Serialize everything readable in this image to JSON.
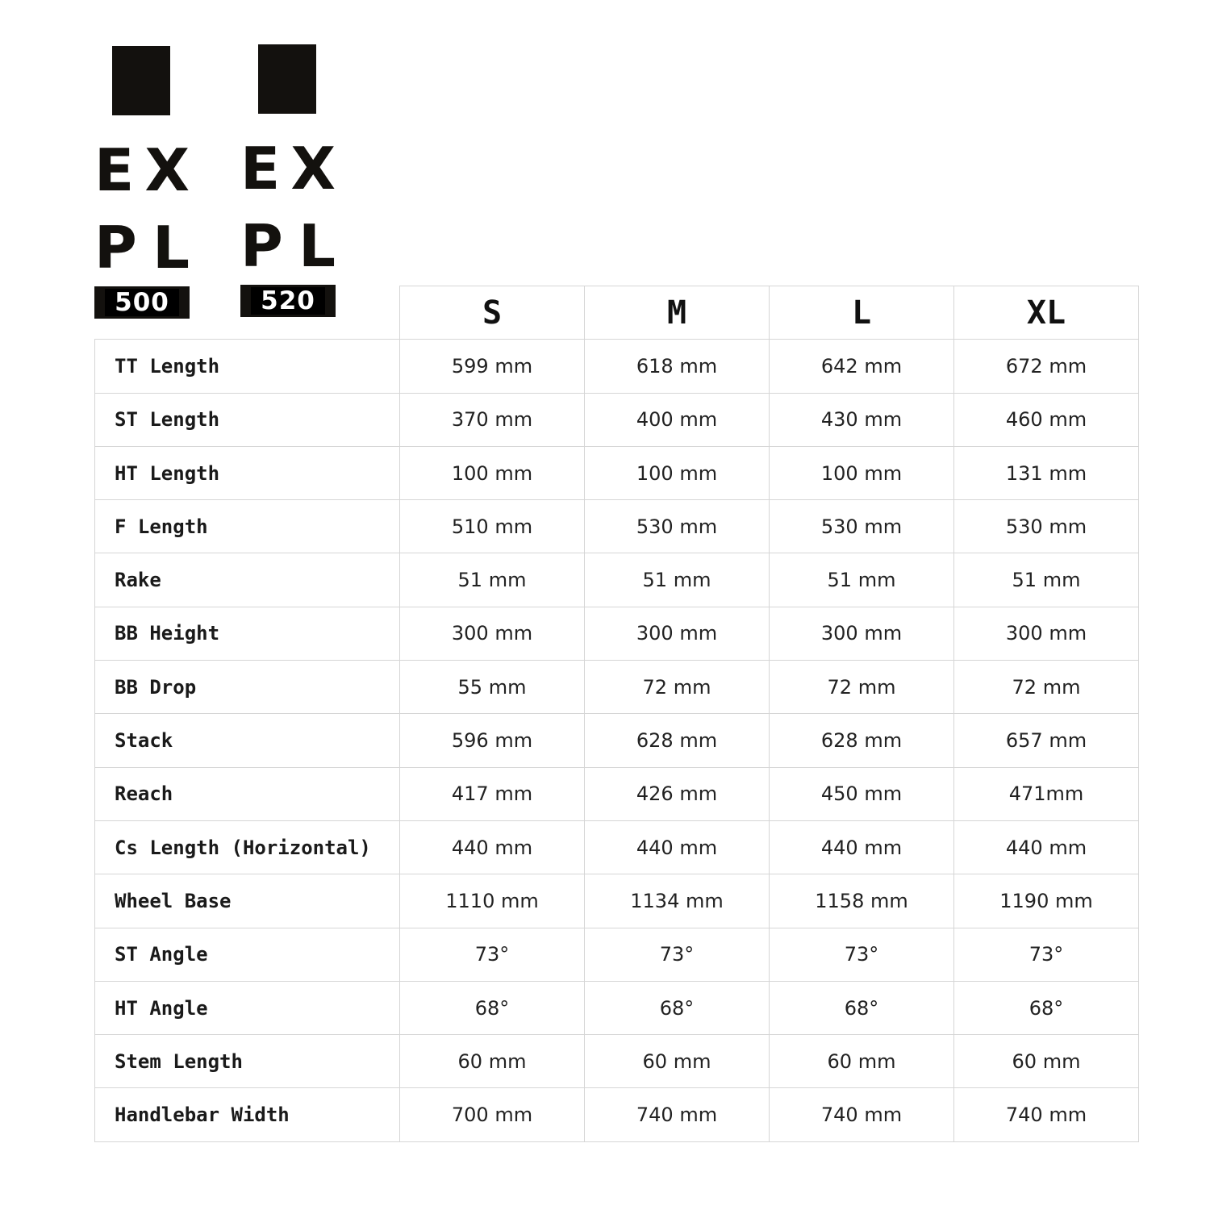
{
  "logos": [
    {
      "letters_top": [
        "E",
        "X"
      ],
      "letters_bottom": [
        "P",
        "L"
      ],
      "model": "500"
    },
    {
      "letters_top": [
        "E",
        "X"
      ],
      "letters_bottom": [
        "P",
        "L"
      ],
      "model": "520"
    }
  ],
  "table": {
    "sizes": [
      "S",
      "M",
      "L",
      "XL"
    ],
    "rows": [
      {
        "label": "TT Length",
        "values": [
          "599 mm",
          "618 mm",
          "642 mm",
          "672 mm"
        ]
      },
      {
        "label": "ST Length",
        "values": [
          "370 mm",
          "400 mm",
          "430 mm",
          "460 mm"
        ]
      },
      {
        "label": "HT Length",
        "values": [
          "100 mm",
          "100 mm",
          "100 mm",
          "131 mm"
        ]
      },
      {
        "label": "F Length",
        "values": [
          "510 mm",
          "530 mm",
          "530 mm",
          "530 mm"
        ]
      },
      {
        "label": "Rake",
        "values": [
          "51 mm",
          "51 mm",
          "51 mm",
          "51 mm"
        ]
      },
      {
        "label": "BB Height",
        "values": [
          "300 mm",
          "300 mm",
          "300 mm",
          "300 mm"
        ]
      },
      {
        "label": "BB Drop",
        "values": [
          "55 mm",
          "72 mm",
          "72 mm",
          "72 mm"
        ]
      },
      {
        "label": "Stack",
        "values": [
          "596 mm",
          "628 mm",
          "628 mm",
          "657 mm"
        ]
      },
      {
        "label": "Reach",
        "values": [
          "417 mm",
          "426 mm",
          "450 mm",
          "471mm"
        ]
      },
      {
        "label": "Cs Length (Horizontal)",
        "values": [
          "440 mm",
          "440 mm",
          "440 mm",
          "440 mm"
        ]
      },
      {
        "label": "Wheel Base",
        "values": [
          "1110 mm",
          "1134 mm",
          "1158 mm",
          "1190 mm"
        ]
      },
      {
        "label": "ST Angle",
        "values": [
          "73°",
          "73°",
          "73°",
          "73°"
        ]
      },
      {
        "label": "HT Angle",
        "values": [
          "68°",
          "68°",
          "68°",
          "68°"
        ]
      },
      {
        "label": "Stem Length",
        "values": [
          "60 mm",
          "60 mm",
          "60 mm",
          "60 mm"
        ]
      },
      {
        "label": "Handlebar Width",
        "values": [
          "700 mm",
          "740 mm",
          "740 mm",
          "740 mm"
        ]
      }
    ]
  }
}
